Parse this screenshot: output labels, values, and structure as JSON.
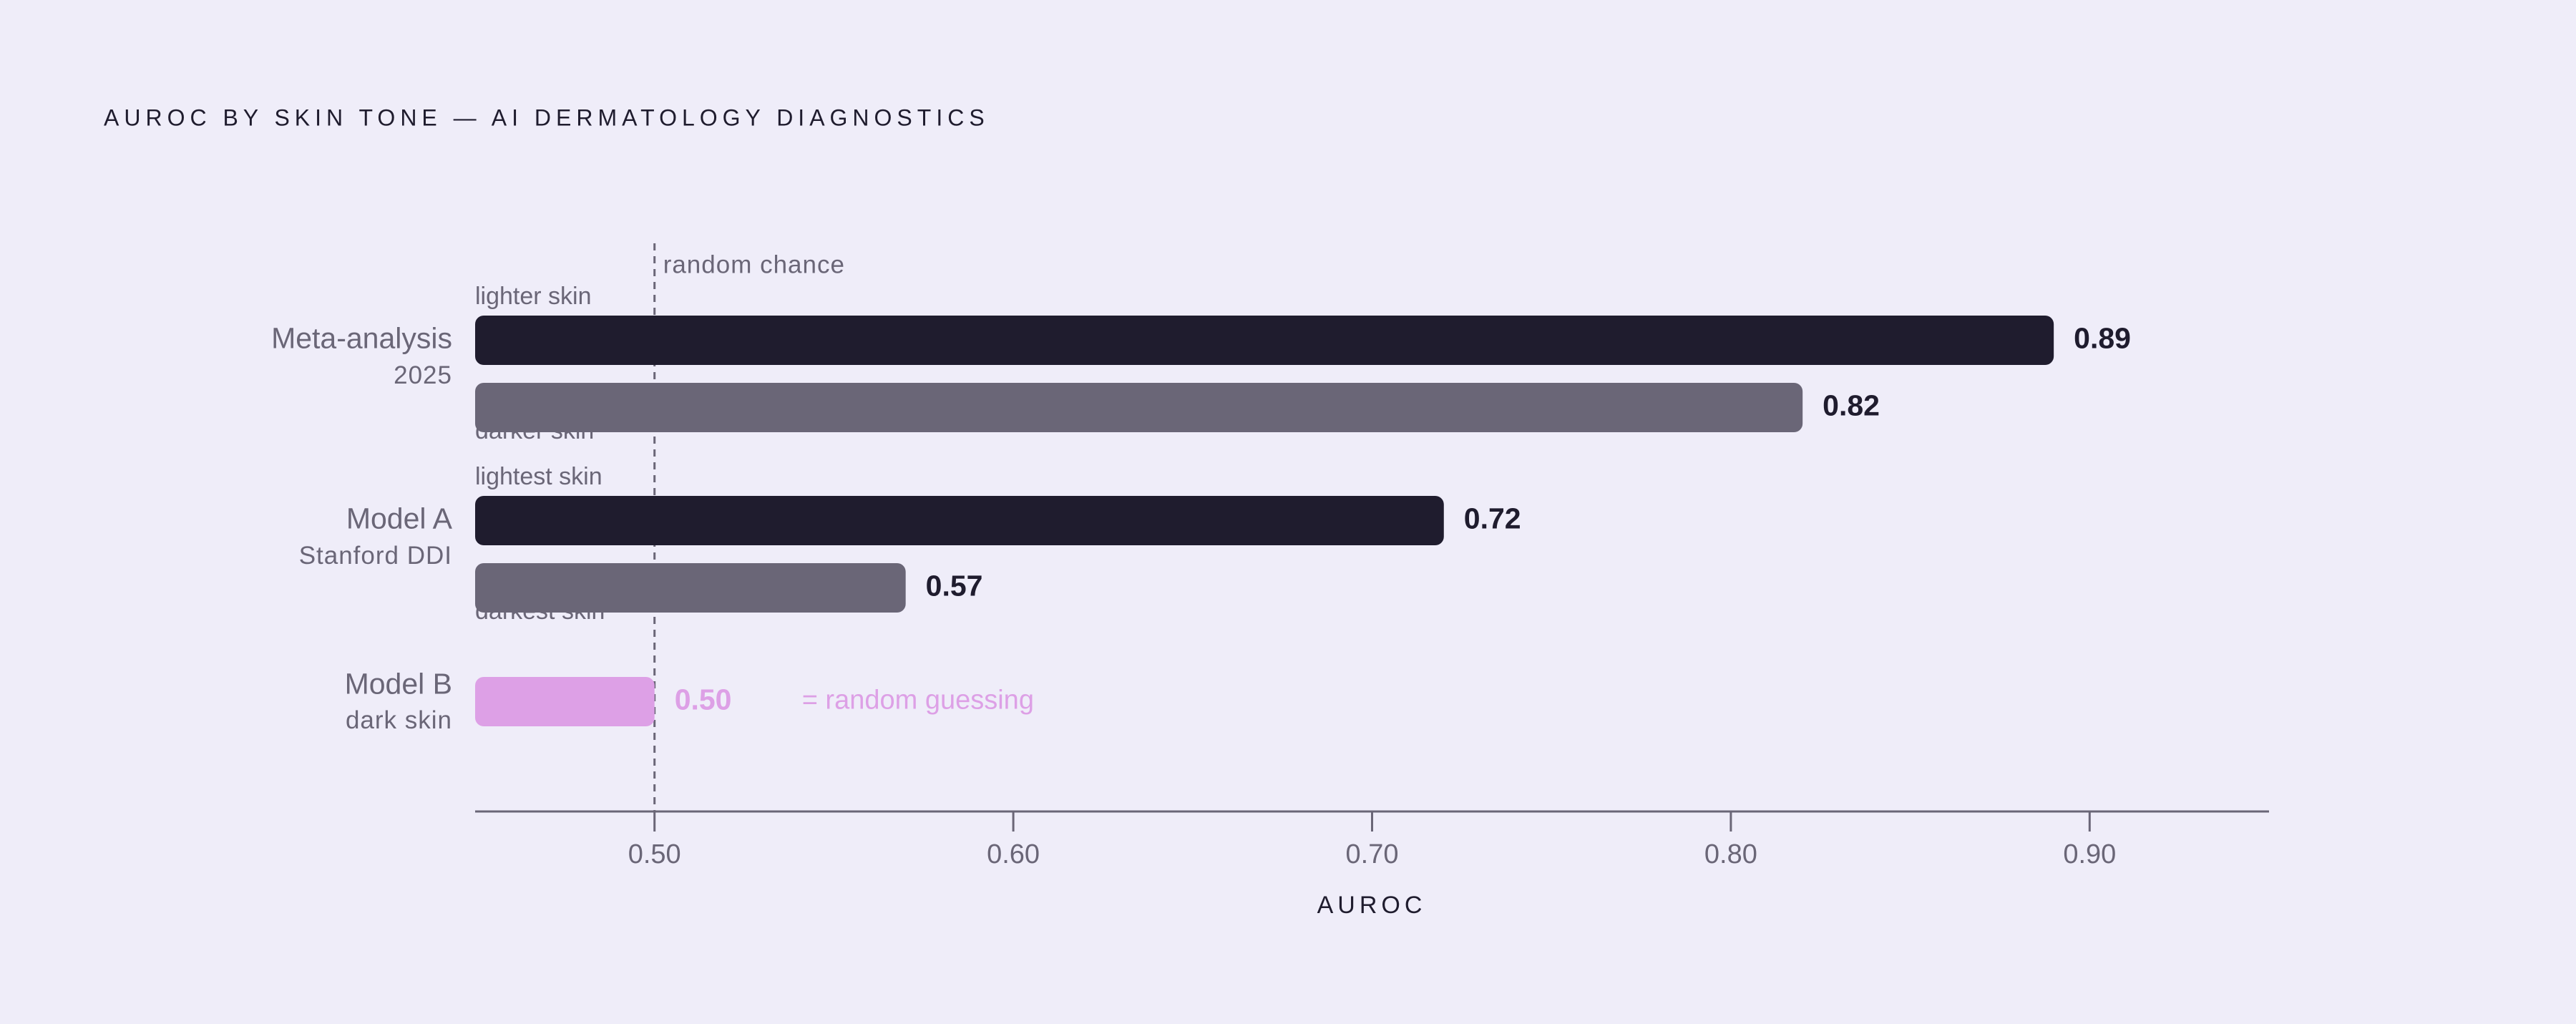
{
  "chart_data": {
    "type": "grouped-hbar",
    "title": "AUROC BY SKIN TONE — AI DERMATOLOGY DIAGNOSTICS",
    "x_label": "AUROC",
    "xlim": [
      0.45,
      0.95
    ],
    "xticks": [
      {
        "value": 0.5,
        "label": "0.50"
      },
      {
        "value": 0.6,
        "label": "0.60"
      },
      {
        "value": 0.7,
        "label": "0.70"
      },
      {
        "value": 0.8,
        "label": "0.80"
      },
      {
        "value": 0.9,
        "label": "0.90"
      }
    ],
    "reference_line": {
      "value": 0.5,
      "label": "random chance"
    },
    "groups": [
      {
        "name": "Meta-analysis",
        "subtitle": "2025",
        "bars": [
          {
            "label": "lighter skin",
            "value": 0.89,
            "value_label": "0.89",
            "color": "#1f1c2e"
          },
          {
            "label": "darker skin",
            "value": 0.82,
            "value_label": "0.82",
            "color": "#6a6677"
          }
        ]
      },
      {
        "name": "Model A",
        "subtitle": "Stanford DDI",
        "bars": [
          {
            "label": "lightest skin",
            "value": 0.72,
            "value_label": "0.72",
            "color": "#1f1c2e"
          },
          {
            "label": "darkest skin",
            "value": 0.57,
            "value_label": "0.57",
            "color": "#6a6677"
          }
        ]
      },
      {
        "name": "Model B",
        "subtitle": "dark skin",
        "bars": [
          {
            "value": 0.5,
            "value_label": "0.50",
            "color": "#dda0e6",
            "annotation": "= random guessing"
          }
        ]
      }
    ]
  }
}
